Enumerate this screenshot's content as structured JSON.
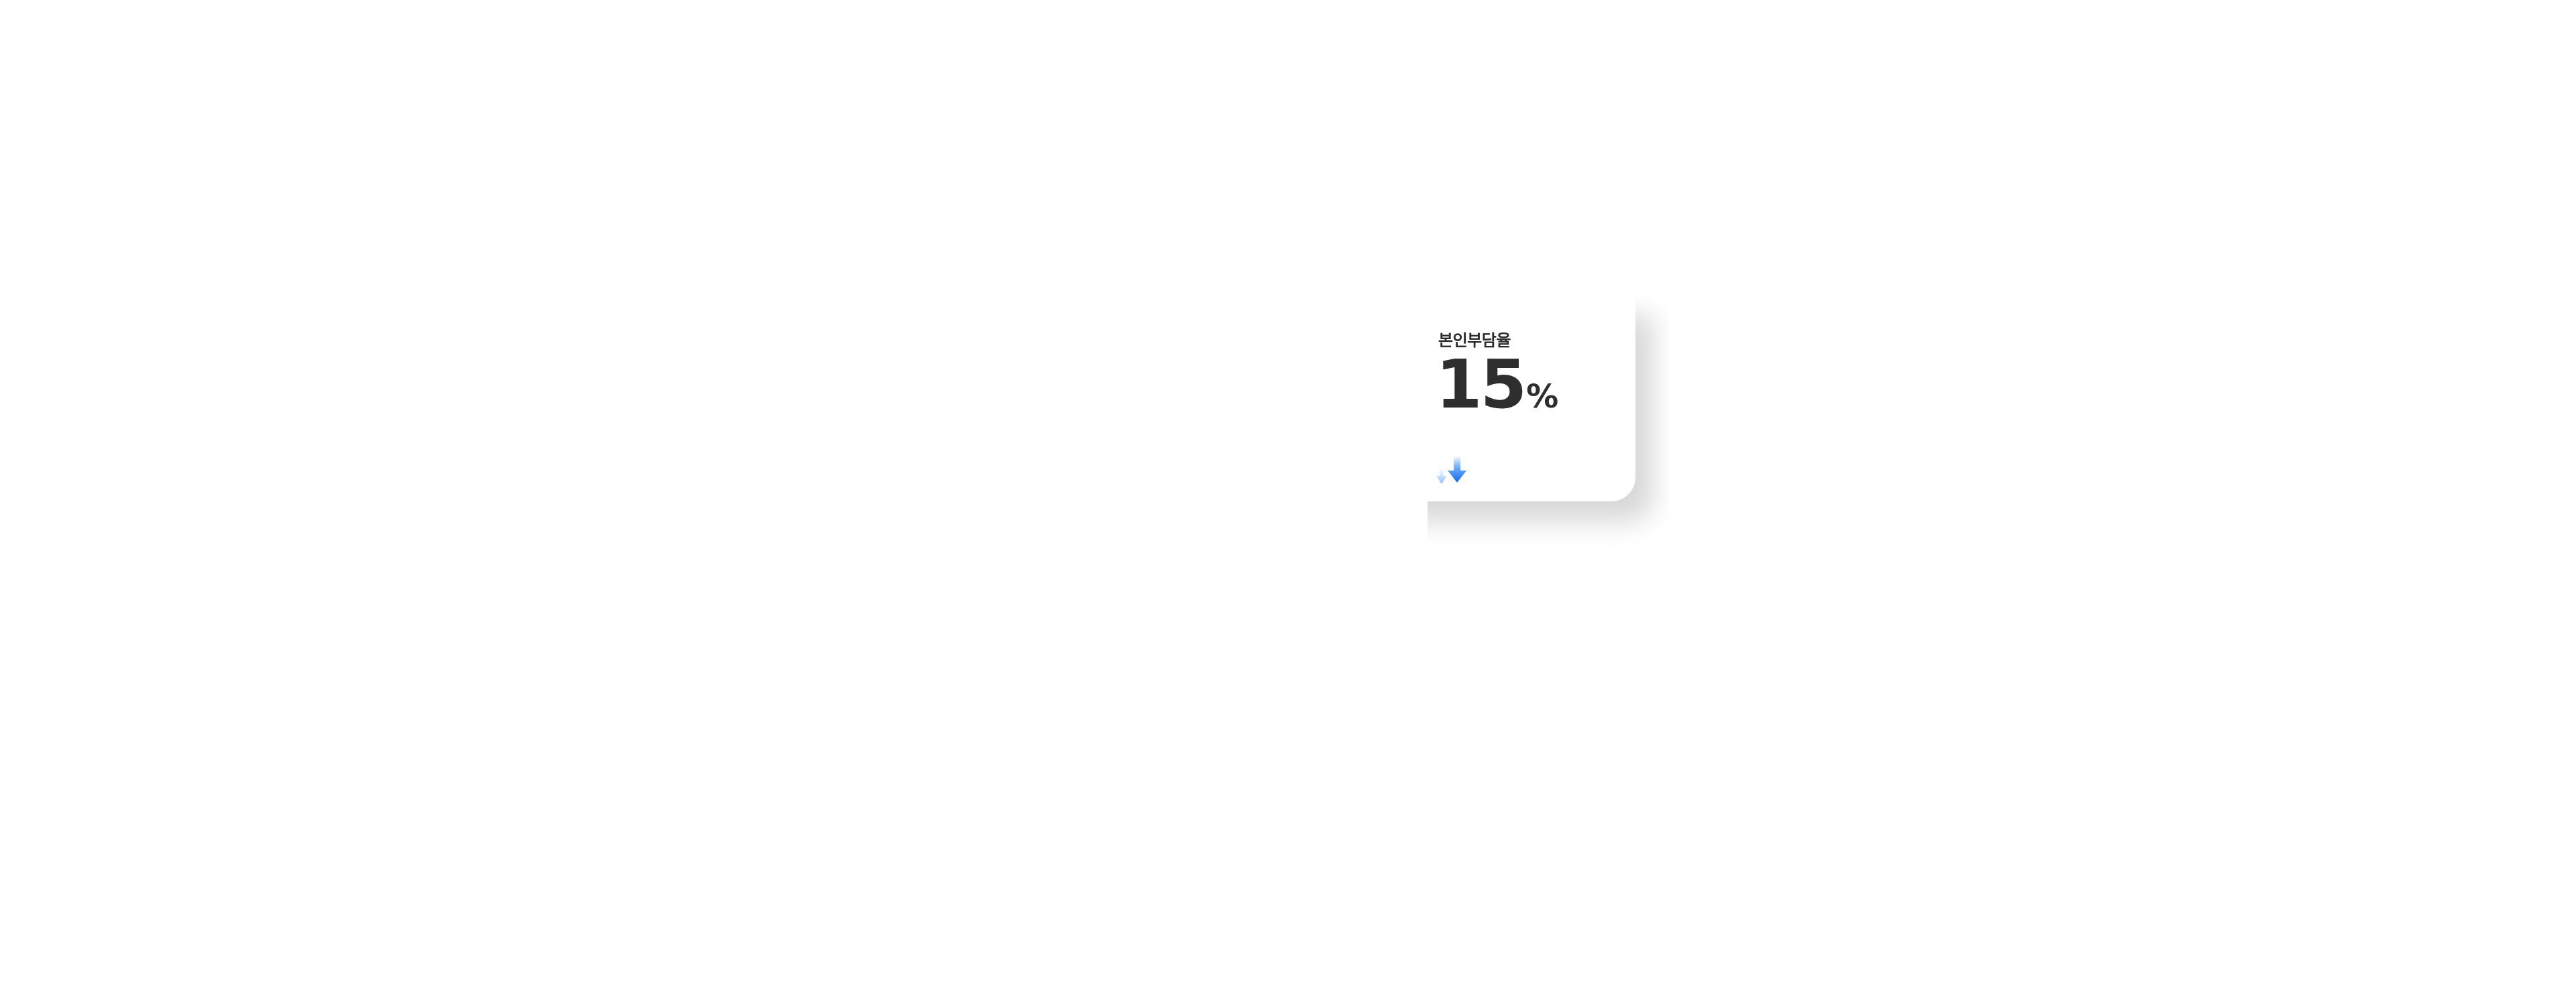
{
  "card": {
    "label": "본인부담율",
    "value": "15",
    "unit": "%",
    "trend_icon": "down-arrow-icon",
    "accent_color": "#1a73f0"
  }
}
